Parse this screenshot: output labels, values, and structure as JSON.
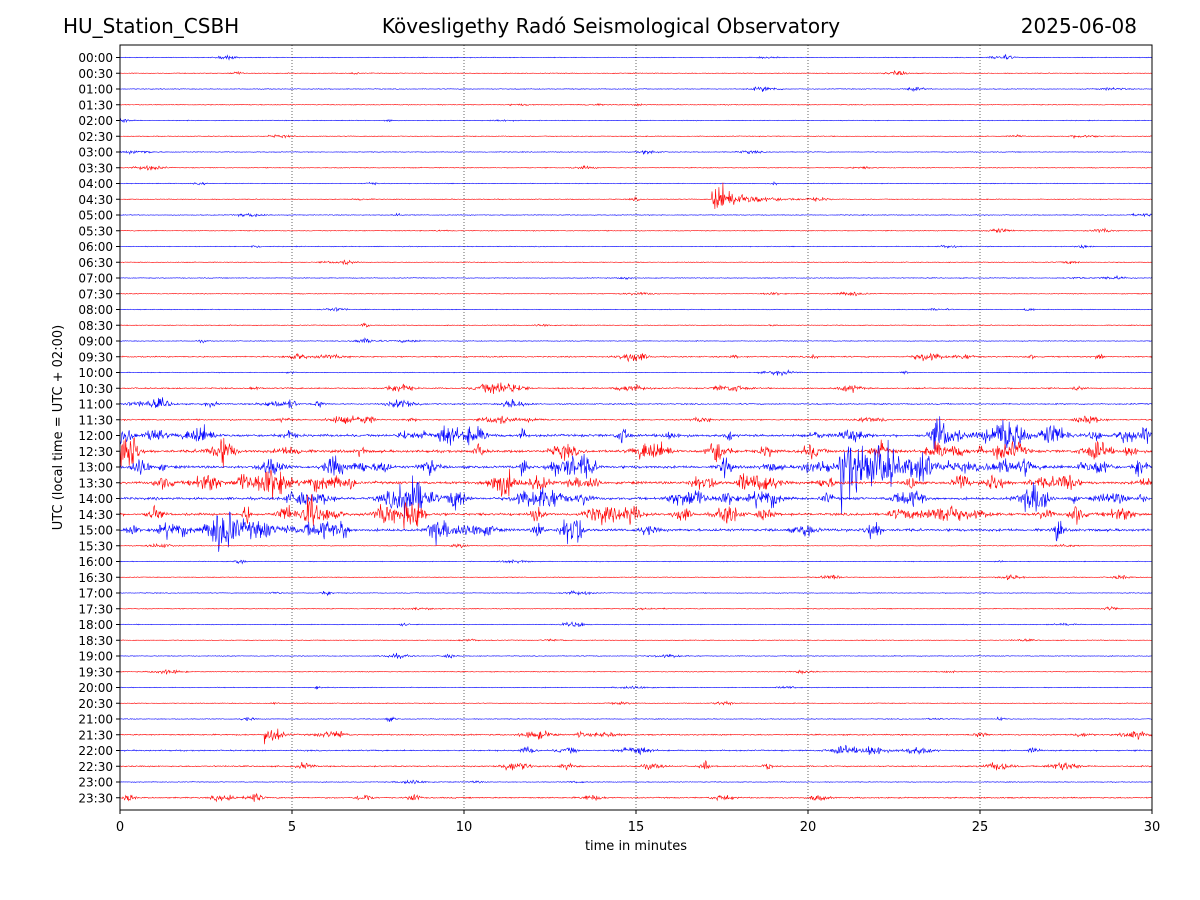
{
  "header": {
    "station": "HU_Station_CSBH",
    "observatory": "Kövesligethy Radó Seismological Observatory",
    "date": "2025-06-08"
  },
  "chart_data": {
    "type": "line",
    "title": "Kövesligethy Radó Seismological Observatory",
    "xlabel": "time in minutes",
    "ylabel": "UTC (local time = UTC + 02:00)",
    "xlim": [
      0,
      30
    ],
    "xticks": [
      "0",
      "5",
      "10",
      "15",
      "20",
      "25",
      "30"
    ],
    "grid": "vertical dotted lines at x = 5, 10, 15, 20, 25",
    "trace_colors": [
      "#0000ff",
      "#ff0000"
    ],
    "rows": [
      "00:00",
      "00:30",
      "01:00",
      "01:30",
      "02:00",
      "02:30",
      "03:00",
      "03:30",
      "04:00",
      "04:30",
      "05:00",
      "05:30",
      "06:00",
      "06:30",
      "07:00",
      "07:30",
      "08:00",
      "08:30",
      "09:00",
      "09:30",
      "10:00",
      "10:30",
      "11:00",
      "11:30",
      "12:00",
      "12:30",
      "13:00",
      "13:30",
      "14:00",
      "14:30",
      "15:00",
      "15:30",
      "16:00",
      "16:30",
      "17:00",
      "17:30",
      "18:00",
      "18:30",
      "19:00",
      "19:30",
      "20:00",
      "20:30",
      "21:00",
      "21:30",
      "22:00",
      "22:30",
      "23:00",
      "23:30"
    ],
    "notable_events": [
      {
        "row": "04:30",
        "start_min": 17.2,
        "end_min": 20.3,
        "peak_amplitude": 0.9
      },
      {
        "row": "13:00",
        "start_min": 20.9,
        "end_min": 27.5,
        "peak_amplitude": 1.6
      },
      {
        "row": "15:00",
        "start_min": 6.4,
        "end_min": 6.7,
        "peak_amplitude": 0.9
      },
      {
        "row": "21:30",
        "start_min": 4.2,
        "end_min": 5.2,
        "peak_amplitude": 0.6
      },
      {
        "row": "21:00",
        "start_min": 25.5,
        "end_min": 25.9,
        "peak_amplitude": 0.3
      }
    ],
    "daytime_noise": {
      "active_rows": [
        "12:00",
        "12:30",
        "13:00",
        "13:30",
        "14:00",
        "14:30",
        "15:00"
      ],
      "moderate_rows": [
        "09:30",
        "10:30",
        "11:00",
        "11:30",
        "21:30",
        "22:00",
        "22:30",
        "23:30"
      ]
    }
  }
}
